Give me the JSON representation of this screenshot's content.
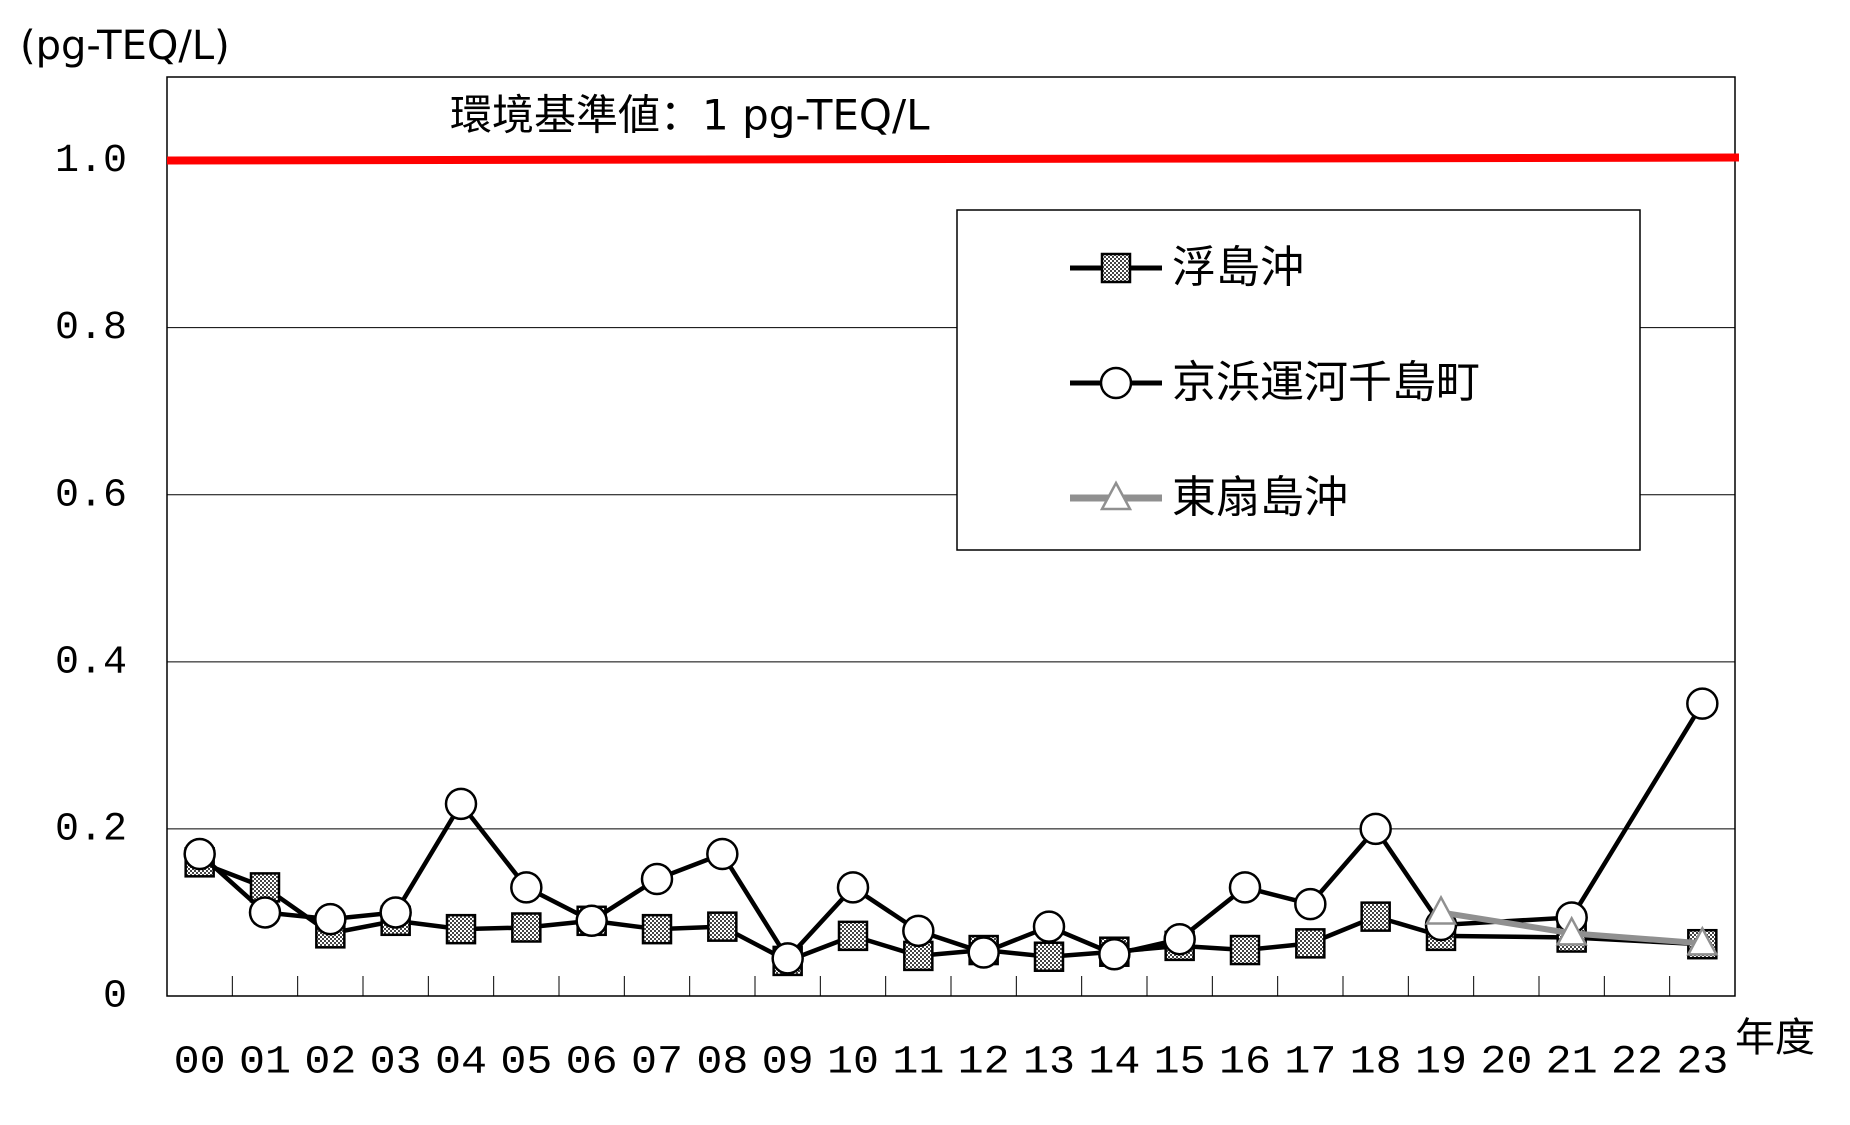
{
  "chart_data": {
    "type": "line",
    "y_label": "(pg-TEQ/L)",
    "x_label": "年度",
    "xlim": [
      -0.5,
      23.5
    ],
    "xticks": [
      {
        "value": 0,
        "label": "00"
      },
      {
        "value": 1,
        "label": "01"
      },
      {
        "value": 2,
        "label": "02"
      },
      {
        "value": 3,
        "label": "03"
      },
      {
        "value": 4,
        "label": "04"
      },
      {
        "value": 5,
        "label": "05"
      },
      {
        "value": 6,
        "label": "06"
      },
      {
        "value": 7,
        "label": "07"
      },
      {
        "value": 8,
        "label": "08"
      },
      {
        "value": 9,
        "label": "09"
      },
      10,
      11,
      12,
      13,
      14,
      15,
      16,
      17,
      18,
      19,
      20,
      21,
      22,
      23
    ],
    "ylim": [
      0,
      1.1
    ],
    "yticks": [
      0,
      0.2,
      0.4,
      0.6,
      0.8,
      {
        "value": 1,
        "label": "1.0"
      }
    ],
    "grid": true,
    "reference_line": {
      "value": 1,
      "label": "環境基準値：1 pg-TEQ/L",
      "color": "#ff0000"
    },
    "legend": "upper right",
    "series": [
      {
        "name": "浮島沖",
        "color": "#000000",
        "marker": "square",
        "x": [
          0,
          1,
          2,
          3,
          4,
          5,
          6,
          7,
          8,
          9,
          10,
          11,
          12,
          13,
          14,
          15,
          16,
          17,
          18,
          19,
          21,
          23
        ],
        "values": [
          0.16,
          0.13,
          0.075,
          0.09,
          0.08,
          0.082,
          0.09,
          0.08,
          0.083,
          0.042,
          0.072,
          0.048,
          0.055,
          0.047,
          0.053,
          0.06,
          0.055,
          0.063,
          0.095,
          0.072,
          0.07,
          0.062
        ]
      },
      {
        "name": "京浜運河千島町",
        "color": "#000000",
        "marker": "circle",
        "x": [
          0,
          1,
          2,
          3,
          4,
          5,
          6,
          7,
          8,
          9,
          10,
          11,
          12,
          13,
          14,
          15,
          16,
          17,
          18,
          19,
          21,
          23
        ],
        "values": [
          0.17,
          0.1,
          0.092,
          0.1,
          0.23,
          0.13,
          0.09,
          0.14,
          0.17,
          0.045,
          0.13,
          0.078,
          0.052,
          0.083,
          0.05,
          0.068,
          0.13,
          0.11,
          0.2,
          0.085,
          0.094,
          0.35
        ]
      },
      {
        "name": "東扇島沖",
        "color": "#909090",
        "marker": "triangle",
        "x": [
          19,
          21,
          23
        ],
        "values": [
          0.1,
          0.075,
          0.063
        ]
      }
    ]
  }
}
